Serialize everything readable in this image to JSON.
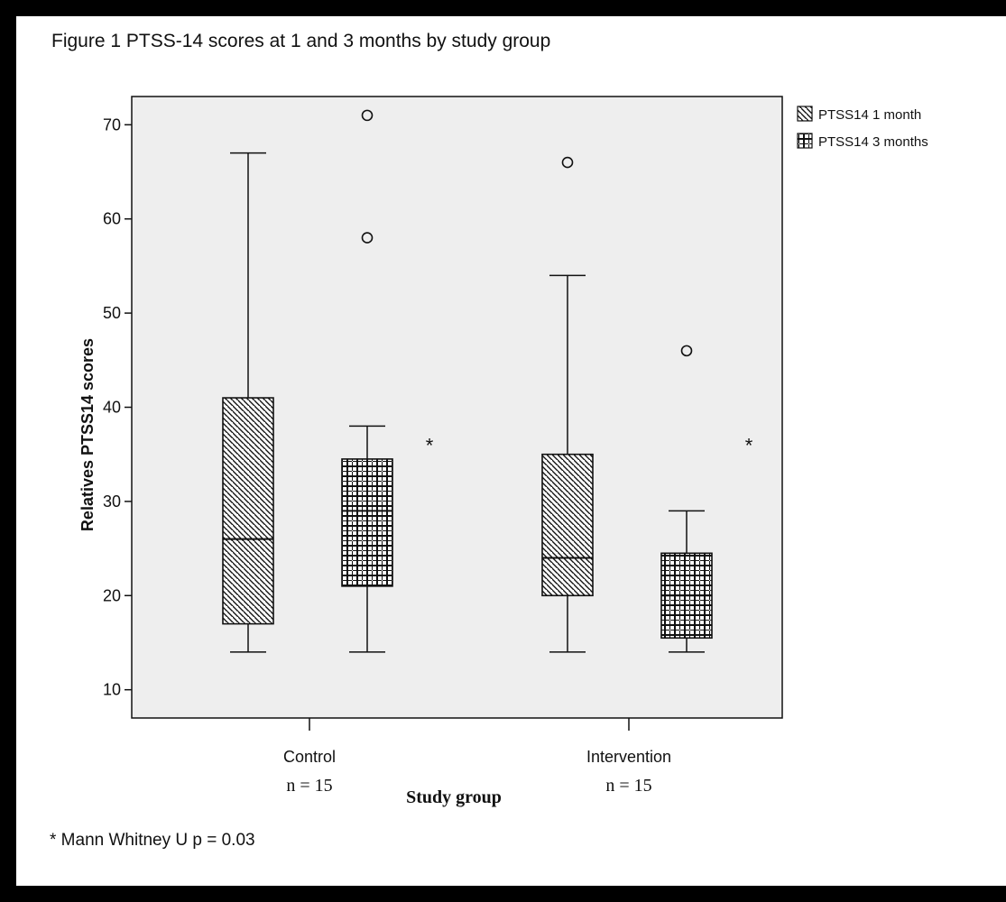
{
  "figure": {
    "title": "Figure 1 PTSS-14 scores at 1 and 3 months by study group",
    "footnote": "* Mann Whitney U p = 0.03"
  },
  "colors": {
    "frame_border": "#000000",
    "page_background": "#ffffff",
    "plot_background": "#eeeeee",
    "ink": "#111111"
  },
  "chart_data": {
    "type": "box",
    "title": "",
    "xlabel": "Study group",
    "ylabel": "Relatives PTSS14 scores",
    "ylim": [
      7,
      73
    ],
    "yticks": [
      10,
      20,
      30,
      40,
      50,
      60,
      70
    ],
    "grid": false,
    "legend_position": "top-right, outside plot",
    "categories": [
      {
        "name": "Control",
        "n_label": "n = 15",
        "significance_marker": "*"
      },
      {
        "name": "Intervention",
        "n_label": "n = 15",
        "significance_marker": "*"
      }
    ],
    "series": [
      {
        "name": "PTSS14 1 month",
        "pattern": "diagonal-hatch",
        "boxes": [
          {
            "category": "Control",
            "min": 14,
            "q1": 17,
            "median": 26,
            "q3": 41,
            "max": 67,
            "outliers": []
          },
          {
            "category": "Intervention",
            "min": 14,
            "q1": 20,
            "median": 24,
            "q3": 35,
            "max": 54,
            "outliers": [
              66
            ]
          }
        ]
      },
      {
        "name": "PTSS14 3 months",
        "pattern": "cross-dotted",
        "boxes": [
          {
            "category": "Control",
            "min": 14,
            "q1": 21,
            "median": 29,
            "q3": 34.5,
            "max": 38,
            "outliers": [
              71,
              58
            ]
          },
          {
            "category": "Intervention",
            "min": 14,
            "q1": 15.5,
            "median": 20,
            "q3": 24.5,
            "max": 29,
            "outliers": [
              46
            ]
          }
        ]
      }
    ]
  }
}
